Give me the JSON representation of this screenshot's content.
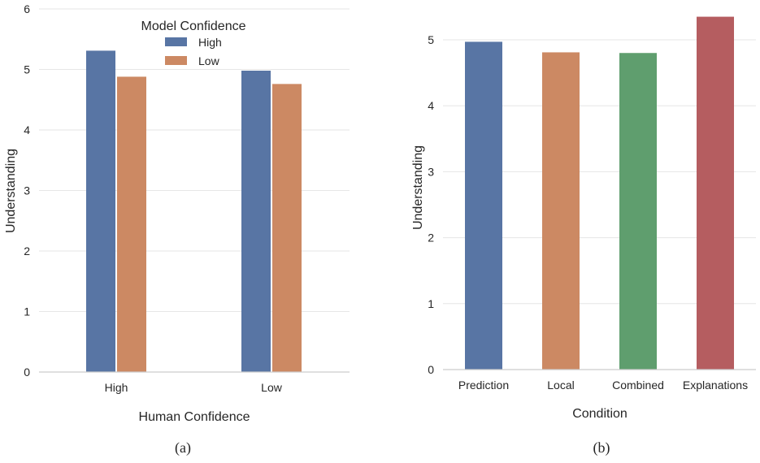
{
  "chart_data": [
    {
      "panel": "a",
      "type": "bar",
      "categories": [
        "High",
        "Low"
      ],
      "series": [
        {
          "name": "High",
          "values": [
            5.31,
            4.98
          ],
          "color": "#5875a4"
        },
        {
          "name": "Low",
          "values": [
            4.88,
            4.76
          ],
          "color": "#cc8963"
        }
      ],
      "xlabel": "Human Confidence",
      "ylabel": "Understanding",
      "ylim": [
        0,
        6
      ],
      "yticks": [
        0,
        1,
        2,
        3,
        4,
        5,
        6
      ],
      "legend": {
        "title": "Model Confidence",
        "position": "top-center"
      },
      "grid": true,
      "caption": "(a)"
    },
    {
      "panel": "b",
      "type": "bar",
      "categories": [
        "Prediction",
        "Local",
        "Combined",
        "Explanations"
      ],
      "values": [
        4.97,
        4.81,
        4.8,
        5.35
      ],
      "colors": [
        "#5875a4",
        "#cc8963",
        "#5f9e6e",
        "#b55d60"
      ],
      "xlabel": "Condition",
      "ylabel": "Understanding",
      "ylim": [
        0,
        5.5
      ],
      "yticks": [
        0,
        1,
        2,
        3,
        4,
        5
      ],
      "grid": true,
      "caption": "(b)"
    }
  ]
}
